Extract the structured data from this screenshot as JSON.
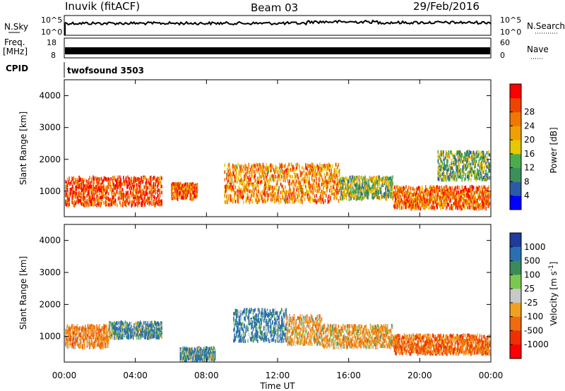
{
  "header": {
    "station": "Inuvik (fitACF)",
    "beam": "Beam 03",
    "date": "29/Feb/2016"
  },
  "strip_labels": {
    "nsky": "N.Sky",
    "nsky_hi": "10^5",
    "nsky_lo": "10^0",
    "nsearch": "N.Search",
    "nsearch_hi": "10^5",
    "nsearch_lo": "10^0",
    "freq_top": "Freq.",
    "freq_unit": "[MHz]",
    "freq_hi": "18",
    "freq_lo": "8",
    "nave_hi": "60",
    "nave_lo": "0",
    "nave": "Nave",
    "cpid": "CPID",
    "cpid_value": "twofsound 3503"
  },
  "chart_data": [
    {
      "type": "heatmap",
      "ylabel": "Slant Range [km]",
      "yticks": [
        "1000",
        "2000",
        "3000",
        "4000"
      ],
      "ylim": [
        200,
        4500
      ],
      "xlim_hours": [
        0,
        24
      ],
      "colorbar": {
        "label": "Power [dB]",
        "ticks": [
          "4",
          "8",
          "12",
          "16",
          "20",
          "24",
          "28"
        ],
        "range": [
          0,
          32
        ],
        "colors": [
          "#0000ff",
          "#2c5aa8",
          "#3b8f5a",
          "#4cab4c",
          "#e6c800",
          "#f0a000",
          "#f07800",
          "#ee4400",
          "#ff0000"
        ]
      },
      "echo_bands": [
        {
          "t0": 0.0,
          "t1": 5.5,
          "r_low": 600,
          "r_high": 1500,
          "power": 26
        },
        {
          "t0": 6.0,
          "t1": 7.5,
          "r_low": 800,
          "r_high": 1300,
          "power": 24
        },
        {
          "t0": 9.0,
          "t1": 15.5,
          "r_low": 700,
          "r_high": 1900,
          "power": 22
        },
        {
          "t0": 15.5,
          "t1": 18.5,
          "r_low": 800,
          "r_high": 1500,
          "power": 14
        },
        {
          "t0": 18.5,
          "t1": 24.0,
          "r_low": 500,
          "r_high": 1200,
          "power": 24
        },
        {
          "t0": 21.0,
          "t1": 24.0,
          "r_low": 1400,
          "r_high": 2300,
          "power": 12
        }
      ]
    },
    {
      "type": "heatmap",
      "ylabel": "Slant Range [km]",
      "xlabel": "Time UT",
      "xticks": [
        "00:00",
        "04:00",
        "08:00",
        "12:00",
        "16:00",
        "20:00",
        "00:00"
      ],
      "yticks": [
        "1000",
        "2000",
        "3000",
        "4000"
      ],
      "ylim": [
        200,
        4500
      ],
      "xlim_hours": [
        0,
        24
      ],
      "colorbar": {
        "label": "Velocity [m s^-1]",
        "ticks": [
          "1000",
          "500",
          "100",
          "25",
          "-25",
          "-100",
          "-500",
          "-1000"
        ],
        "colors": [
          "#1e3c9c",
          "#2a70b0",
          "#3a8a5a",
          "#7ac850",
          "#c8c8c8",
          "#f0a020",
          "#f06a10",
          "#f03000",
          "#ff0000"
        ]
      },
      "echo_bands": [
        {
          "t0": 0.0,
          "t1": 2.5,
          "r_low": 700,
          "r_high": 1400,
          "velocity": -300
        },
        {
          "t0": 2.5,
          "t1": 5.5,
          "r_low": 1000,
          "r_high": 1500,
          "velocity": 100
        },
        {
          "t0": 6.5,
          "t1": 8.5,
          "r_low": 300,
          "r_high": 700,
          "velocity": 100
        },
        {
          "t0": 9.5,
          "t1": 12.5,
          "r_low": 900,
          "r_high": 1900,
          "velocity": 150
        },
        {
          "t0": 12.5,
          "t1": 14.5,
          "r_low": 800,
          "r_high": 1700,
          "velocity": -200
        },
        {
          "t0": 14.5,
          "t1": 18.5,
          "r_low": 700,
          "r_high": 1400,
          "velocity": -200
        },
        {
          "t0": 18.5,
          "t1": 24.0,
          "r_low": 500,
          "r_high": 1100,
          "velocity": -400
        }
      ]
    }
  ]
}
